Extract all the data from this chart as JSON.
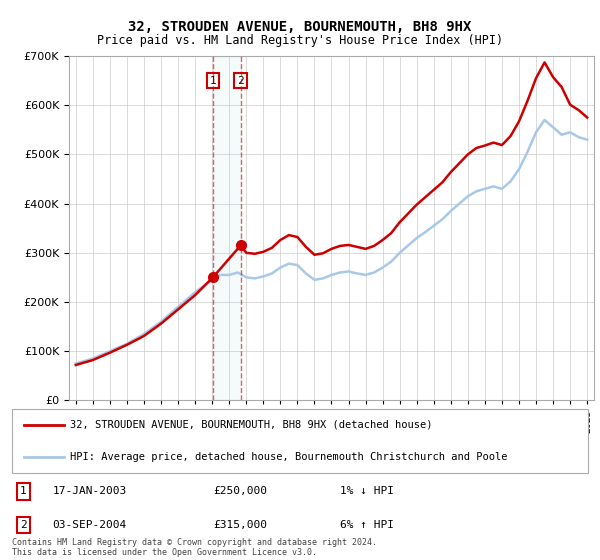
{
  "title": "32, STROUDEN AVENUE, BOURNEMOUTH, BH8 9HX",
  "subtitle": "Price paid vs. HM Land Registry's House Price Index (HPI)",
  "legend_line1": "32, STROUDEN AVENUE, BOURNEMOUTH, BH8 9HX (detached house)",
  "legend_line2": "HPI: Average price, detached house, Bournemouth Christchurch and Poole",
  "table_row1": [
    "1",
    "17-JAN-2003",
    "£250,000",
    "1% ↓ HPI"
  ],
  "table_row2": [
    "2",
    "03-SEP-2004",
    "£315,000",
    "6% ↑ HPI"
  ],
  "footer": "Contains HM Land Registry data © Crown copyright and database right 2024.\nThis data is licensed under the Open Government Licence v3.0.",
  "hpi_color": "#a8c8e8",
  "price_color": "#cc0000",
  "sale1_date_x": 2003.04,
  "sale2_date_x": 2004.67,
  "sale1_price": 250000,
  "sale2_price": 315000,
  "ylim": [
    0,
    700000
  ],
  "yticks": [
    0,
    100000,
    200000,
    300000,
    400000,
    500000,
    600000,
    700000
  ],
  "xlim_left": 1994.6,
  "xlim_right": 2025.4,
  "background_color": "#ffffff",
  "grid_color": "#cccccc",
  "hpi_points_x": [
    1995,
    1996,
    1997,
    1998,
    1999,
    2000,
    2001,
    2002,
    2003,
    2003.5,
    2004,
    2004.5,
    2005,
    2005.5,
    2006,
    2006.5,
    2007,
    2007.5,
    2008,
    2008.5,
    2009,
    2009.5,
    2010,
    2010.5,
    2011,
    2011.5,
    2012,
    2012.5,
    2013,
    2013.5,
    2014,
    2014.5,
    2015,
    2015.5,
    2016,
    2016.5,
    2017,
    2017.5,
    2018,
    2018.5,
    2019,
    2019.5,
    2020,
    2020.5,
    2021,
    2021.5,
    2022,
    2022.5,
    2023,
    2023.5,
    2024,
    2024.5,
    2025
  ],
  "hpi_points_y": [
    75000,
    85000,
    100000,
    115000,
    135000,
    160000,
    190000,
    220000,
    245000,
    255000,
    255000,
    260000,
    250000,
    248000,
    252000,
    258000,
    270000,
    278000,
    275000,
    258000,
    245000,
    248000,
    255000,
    260000,
    262000,
    258000,
    255000,
    260000,
    270000,
    282000,
    300000,
    315000,
    330000,
    342000,
    355000,
    368000,
    385000,
    400000,
    415000,
    425000,
    430000,
    435000,
    430000,
    445000,
    470000,
    505000,
    545000,
    570000,
    555000,
    540000,
    545000,
    535000,
    530000
  ],
  "price_points_x": [
    1995,
    1996,
    1997,
    1998,
    1999,
    2000,
    2001,
    2002,
    2003.04,
    2004.67,
    2005,
    2005.5,
    2006,
    2006.5,
    2007,
    2007.5,
    2008,
    2008.5,
    2009,
    2009.5,
    2010,
    2010.5,
    2011,
    2011.5,
    2012,
    2012.5,
    2013,
    2013.5,
    2014,
    2014.5,
    2015,
    2015.5,
    2016,
    2016.5,
    2017,
    2017.5,
    2018,
    2018.5,
    2019,
    2019.5,
    2020,
    2020.5,
    2021,
    2021.5,
    2022,
    2022.5,
    2023,
    2023.5,
    2024,
    2024.5,
    2025
  ],
  "price_points_y": [
    72000,
    82000,
    97000,
    113000,
    131000,
    156000,
    185000,
    214000,
    250000,
    315000,
    300000,
    298000,
    302000,
    310000,
    326000,
    336000,
    332000,
    312000,
    296000,
    299000,
    308000,
    314000,
    316000,
    312000,
    308000,
    314000,
    326000,
    340000,
    362000,
    380000,
    398000,
    413000,
    428000,
    443000,
    464000,
    482000,
    500000,
    513000,
    518000,
    524000,
    519000,
    537000,
    567000,
    609000,
    655000,
    687000,
    657000,
    637000,
    601000,
    590000,
    575000
  ]
}
